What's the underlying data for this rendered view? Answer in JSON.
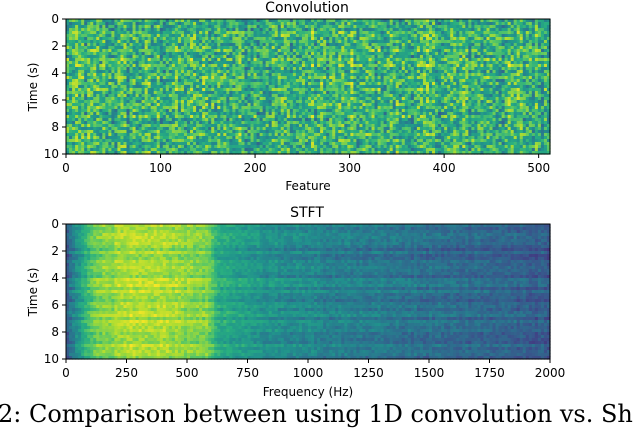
{
  "figure": {
    "caption_fragment": "2: Comparison between using 1D convolution vs. Sh"
  },
  "chart_data": [
    {
      "type": "heatmap",
      "title": "Convolution",
      "xlabel": "Feature",
      "ylabel": "Time (s)",
      "xlim": [
        0,
        512
      ],
      "ylim": [
        10,
        0
      ],
      "xticks": [
        0,
        100,
        200,
        300,
        400,
        500
      ],
      "yticks": [
        0,
        2,
        4,
        6,
        8,
        10
      ],
      "colormap": "viridis",
      "pattern": "uniform noise, mean value ~0.65 across all features and times, fine column striping",
      "mean_level": 0.65,
      "noise_amplitude": 0.22
    },
    {
      "type": "heatmap",
      "title": "STFT",
      "xlabel": "Frequency (Hz)",
      "ylabel": "Time (s)",
      "xlim": [
        0,
        2000
      ],
      "ylim": [
        10,
        0
      ],
      "xticks": [
        0,
        250,
        500,
        750,
        1000,
        1250,
        1500,
        1750,
        2000
      ],
      "yticks": [
        0,
        2,
        4,
        6,
        8,
        10
      ],
      "colormap": "viridis",
      "pattern": "spectral energy high below ~600 Hz (peak ~200-400 Hz), decaying toward 2000 Hz; horizontal striping over time",
      "energy_profile": [
        {
          "hz": 0,
          "level": 0.3
        },
        {
          "hz": 50,
          "level": 0.55
        },
        {
          "hz": 120,
          "level": 0.78
        },
        {
          "hz": 250,
          "level": 0.88
        },
        {
          "hz": 400,
          "level": 0.85
        },
        {
          "hz": 580,
          "level": 0.8
        },
        {
          "hz": 620,
          "level": 0.6
        },
        {
          "hz": 800,
          "level": 0.5
        },
        {
          "hz": 1000,
          "level": 0.45
        },
        {
          "hz": 1250,
          "level": 0.4
        },
        {
          "hz": 1500,
          "level": 0.36
        },
        {
          "hz": 1750,
          "level": 0.32
        },
        {
          "hz": 2000,
          "level": 0.28
        }
      ]
    }
  ]
}
